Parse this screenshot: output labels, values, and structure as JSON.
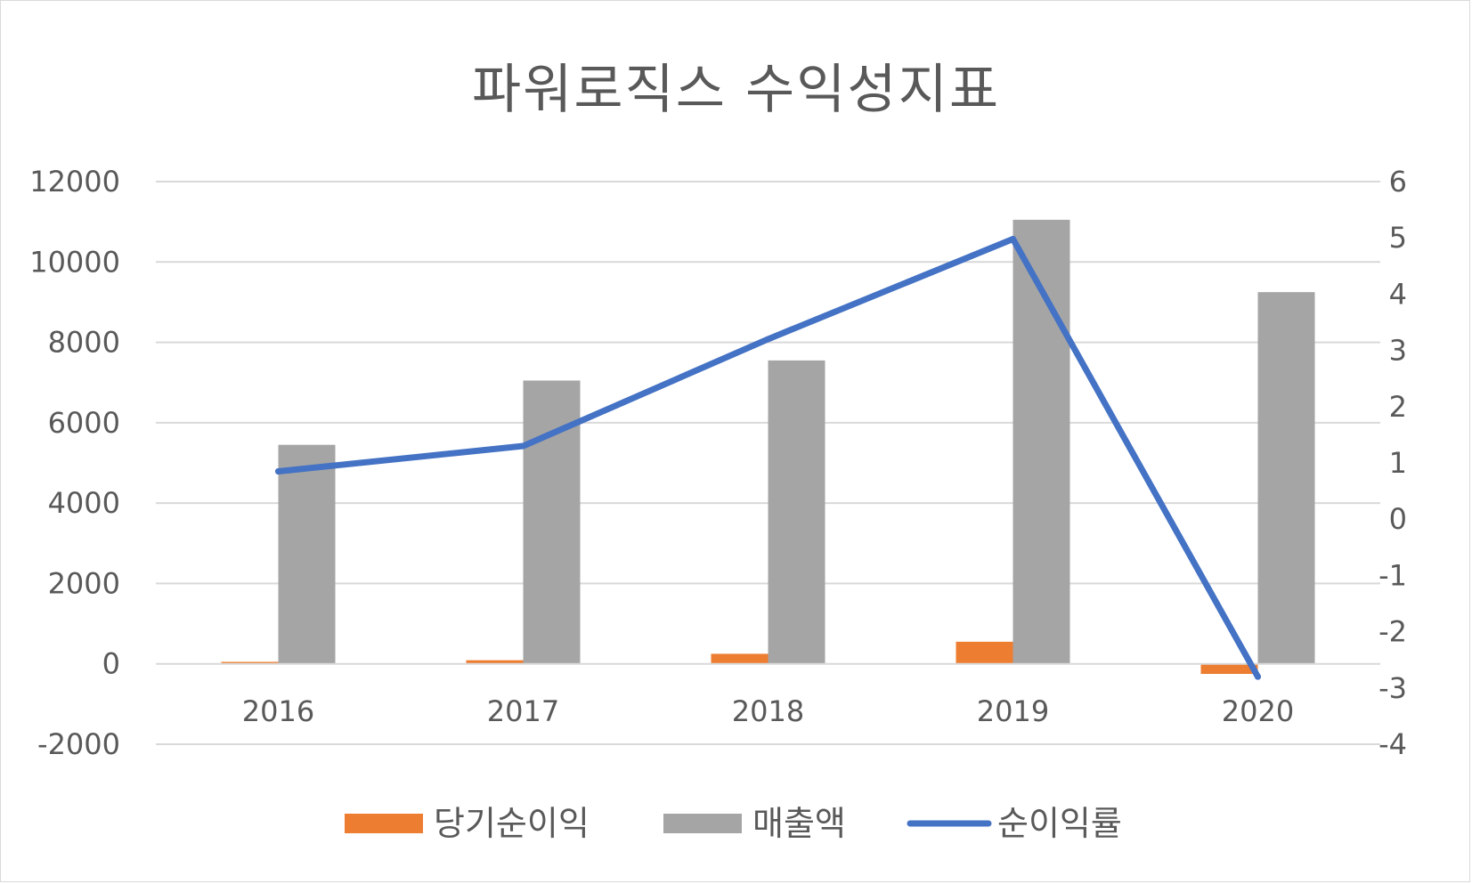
{
  "chart_data": {
    "type": "bar",
    "title": "파워로직스 수익성지표",
    "categories": [
      "2016",
      "2017",
      "2018",
      "2019",
      "2020"
    ],
    "series": [
      {
        "name": "당기순이익",
        "type": "bar",
        "axis": "left",
        "color": "#ed7d31",
        "values": [
          50,
          90,
          250,
          550,
          -250
        ]
      },
      {
        "name": "매출액",
        "type": "bar",
        "axis": "left",
        "color": "#a5a5a5",
        "values": [
          5450,
          7050,
          7550,
          11050,
          9250
        ]
      },
      {
        "name": "순이익률",
        "type": "line",
        "axis": "right",
        "color": "#4472c4",
        "values": [
          0.85,
          1.3,
          3.2,
          4.98,
          -2.8
        ]
      }
    ],
    "y_left": {
      "min": -2000,
      "max": 12000,
      "ticks": [
        "12000",
        "10000",
        "8000",
        "6000",
        "4000",
        "2000",
        "0",
        "-2000"
      ]
    },
    "y_right": {
      "min": -4,
      "max": 6,
      "ticks": [
        "6",
        "5",
        "4",
        "3",
        "2",
        "1",
        "0",
        "-1",
        "-2",
        "-3",
        "-4"
      ]
    },
    "grid": true,
    "legend_position": "bottom"
  }
}
